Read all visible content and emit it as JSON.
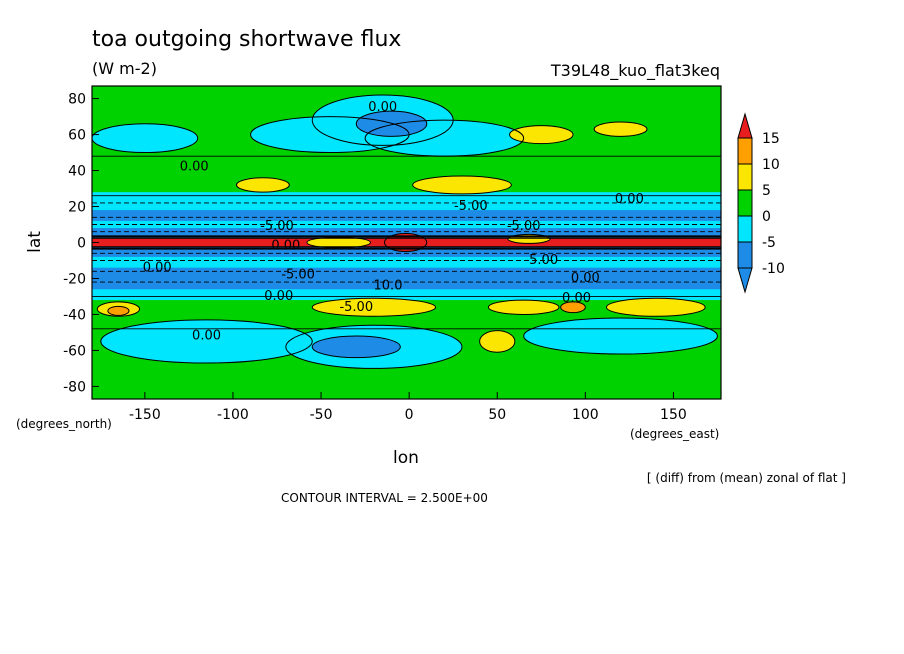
{
  "chart_data": {
    "type": "heatmap",
    "title": "toa outgoing shortwave flux",
    "subtitle": "(W m-2)",
    "run_label": "T39L48_kuo_flat3keq",
    "xlabel": "lon",
    "ylabel": "lat",
    "x_unit_label": "(degrees_east)",
    "y_unit_label": "(degrees_north)",
    "xlim": [
      -180,
      177
    ],
    "ylim": [
      -87,
      87
    ],
    "x_ticks": [
      -150,
      -100,
      -50,
      0,
      50,
      100,
      150
    ],
    "x_tick_labels": [
      "-150",
      "-100",
      "-50",
      "0",
      "50",
      "100",
      "150"
    ],
    "y_ticks": [
      80,
      60,
      40,
      20,
      0,
      -20,
      -40,
      -60,
      -80
    ],
    "y_tick_labels": [
      "80",
      "60",
      "40",
      "20",
      "0",
      "-20",
      "-40",
      "-60",
      "-80"
    ],
    "colorbar": {
      "levels": [
        -10,
        -5,
        0,
        5,
        10,
        15
      ],
      "level_labels": [
        "-10",
        "-5",
        "0",
        "5",
        "10",
        "15"
      ],
      "colors": [
        "#1e8ce6",
        "#00e6ff",
        "#00d200",
        "#fae600",
        "#ffa000",
        "#e61e1e"
      ],
      "lower_color": "#1e8ce6",
      "upper_color": "#e61e1e"
    },
    "contour_labels": [
      {
        "text": "0.00",
        "lon": -15,
        "lat": 73
      },
      {
        "text": "0.00",
        "lon": -122,
        "lat": 40
      },
      {
        "text": "0.00",
        "lon": 125,
        "lat": 22
      },
      {
        "text": "-5.00",
        "lon": 35,
        "lat": 18
      },
      {
        "text": "-5.00",
        "lon": -75,
        "lat": 7
      },
      {
        "text": "-5.00",
        "lon": 65,
        "lat": 7
      },
      {
        "text": "0.00",
        "lon": -70,
        "lat": -4
      },
      {
        "text": "-5.00",
        "lon": 75,
        "lat": -12
      },
      {
        "text": "0.00",
        "lon": -143,
        "lat": -16
      },
      {
        "text": "-5.00",
        "lon": -63,
        "lat": -20
      },
      {
        "text": "0.00",
        "lon": 100,
        "lat": -22
      },
      {
        "text": "10.0",
        "lon": -12,
        "lat": -26
      },
      {
        "text": "0.00",
        "lon": -74,
        "lat": -32
      },
      {
        "text": "-5.00",
        "lon": -30,
        "lat": -38
      },
      {
        "text": "0.00",
        "lon": 95,
        "lat": -33
      },
      {
        "text": "0.00",
        "lon": -115,
        "lat": -54
      }
    ],
    "grid": false,
    "legend_placement": "right"
  },
  "footer": {
    "note": "[ (diff) from (mean) zonal of flat ]",
    "contour_interval": "CONTOUR INTERVAL = 2.500E+00"
  }
}
